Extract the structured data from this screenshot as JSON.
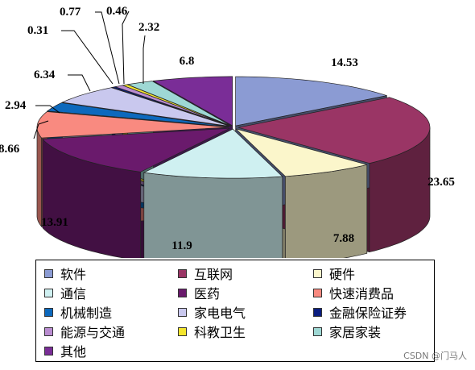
{
  "chart_data": {
    "type": "pie",
    "style": "3d-exploded",
    "categories": [
      "软件",
      "互联网",
      "硬件",
      "通信",
      "医药",
      "快速消费品",
      "机械制造",
      "家电电气",
      "金融保险证券",
      "能源与交通",
      "科教卫生",
      "家居家装",
      "其他"
    ],
    "values": [
      14.53,
      23.65,
      7.88,
      11.9,
      13.91,
      8.66,
      2.94,
      6.34,
      0.31,
      0.77,
      0.46,
      2.32,
      6.8
    ],
    "data_labels": [
      "14.53",
      "23.65",
      "7.88",
      "11.9",
      "13.91",
      "8.66",
      "2.94",
      "6.34",
      "0.31",
      "0.77",
      "0.46",
      "2.32",
      "6.8"
    ],
    "colors": [
      "#8b9bd3",
      "#9a3565",
      "#fbf6cb",
      "#cff0f1",
      "#6a1a6c",
      "#f98a80",
      "#0d69bd",
      "#c9c8ee",
      "#0b1e80",
      "#b98cd0",
      "#f3e52d",
      "#9ed8d4",
      "#7a2d97"
    ],
    "legend_position": "bottom",
    "legend_columns": 3
  },
  "watermark": "CSDN @门马人"
}
